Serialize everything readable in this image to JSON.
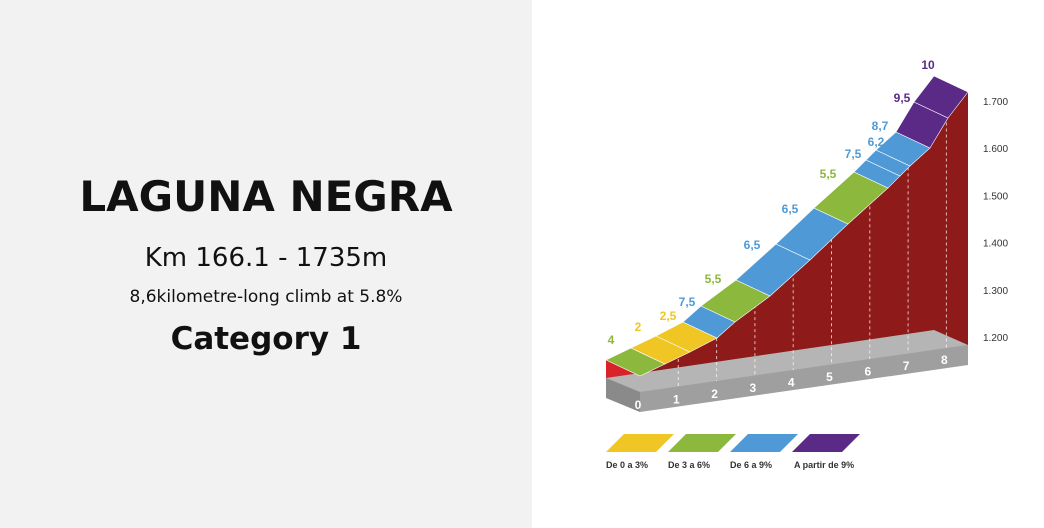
{
  "header": {
    "title": "LAGUNA NEGRA",
    "subtitle": "Km 166.1 - 1735m",
    "detail": "8,6kilometre-long climb at 5.8%",
    "category": "Category 1"
  },
  "profile": {
    "gradients": [
      "4",
      "2",
      "2,5",
      "7,5",
      "5,5",
      "6,5",
      "6,5",
      "5,5",
      "7,5",
      "6,2",
      "8,7",
      "9,5",
      "10"
    ],
    "km_marks": [
      "0",
      "1",
      "2",
      "3",
      "4",
      "5",
      "6",
      "7",
      "8"
    ],
    "altitudes": [
      "1.200",
      "1.300",
      "1.400",
      "1.500",
      "1.600",
      "1.700"
    ],
    "legend": [
      "De 0 a 3%",
      "De 3 a 6%",
      "De 6 a 9%",
      "A partir de 9%"
    ]
  }
}
